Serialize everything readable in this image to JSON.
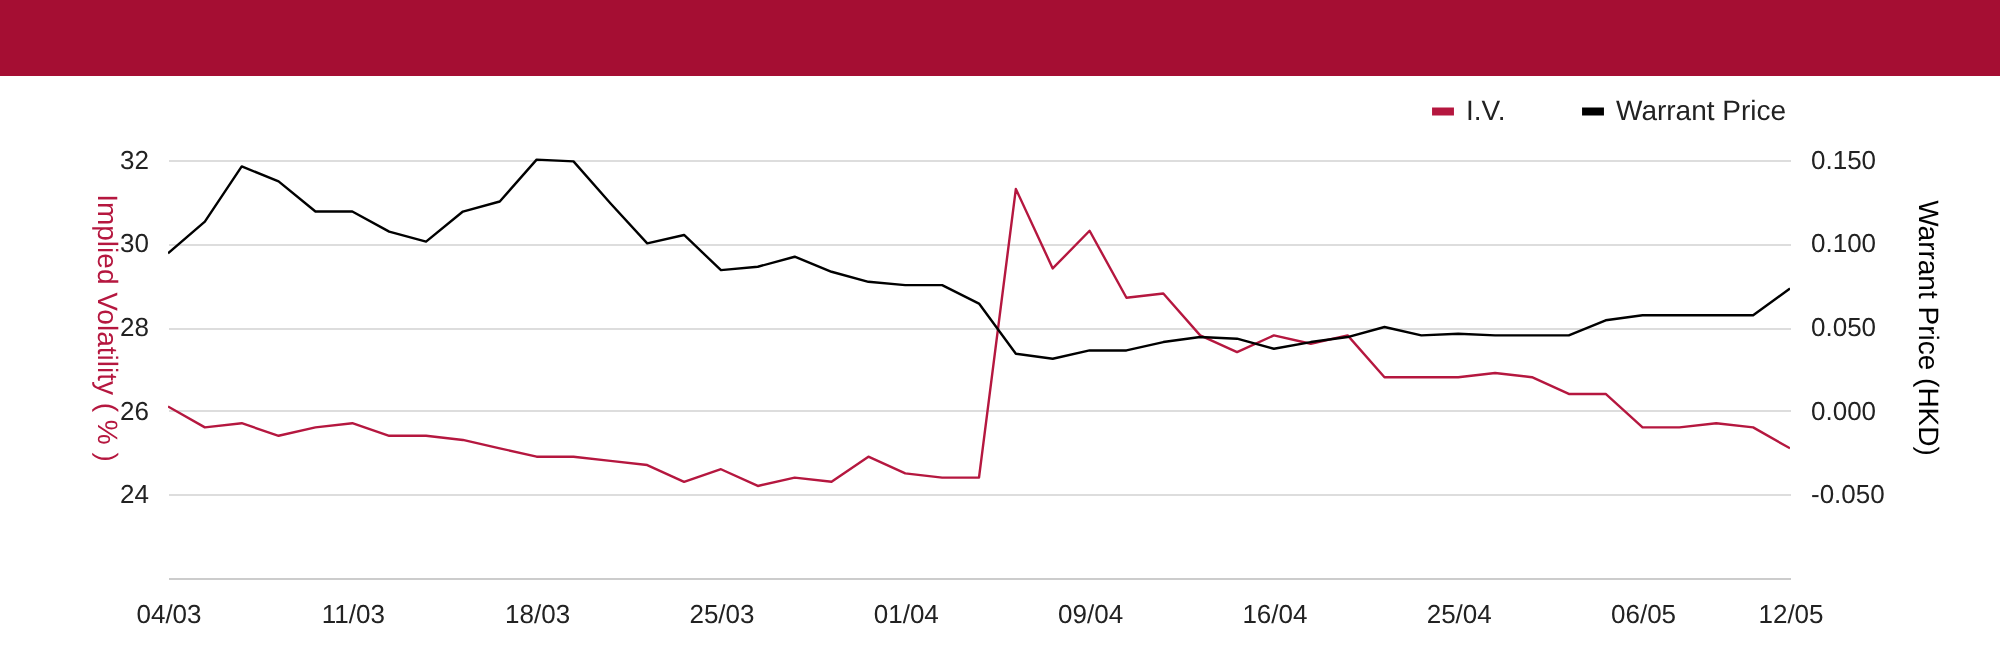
{
  "chart_data": {
    "type": "line",
    "categories": [
      "04/03",
      null,
      null,
      null,
      null,
      "11/03",
      null,
      null,
      null,
      null,
      "18/03",
      null,
      null,
      null,
      null,
      "25/03",
      null,
      null,
      null,
      null,
      "01/04",
      null,
      null,
      null,
      null,
      "09/04",
      null,
      null,
      null,
      null,
      "16/04",
      null,
      null,
      null,
      null,
      "25/04",
      null,
      null,
      null,
      null,
      "06/05",
      null,
      null,
      null,
      "12/05"
    ],
    "series": [
      {
        "name": "I.V.",
        "color": "#b5173f",
        "values": [
          26.1,
          25.6,
          25.7,
          25.4,
          25.6,
          25.7,
          25.4,
          25.4,
          25.3,
          25.1,
          24.9,
          24.9,
          24.8,
          24.7,
          24.3,
          24.6,
          24.2,
          24.4,
          24.3,
          24.9,
          24.5,
          24.4,
          24.4,
          31.3,
          29.4,
          30.3,
          28.7,
          28.8,
          27.8,
          27.4,
          27.8,
          27.6,
          27.8,
          26.8,
          26.8,
          26.8,
          26.9,
          26.8,
          26.4,
          26.4,
          25.6,
          25.6,
          25.7,
          25.6,
          25.1
        ]
      },
      {
        "name": "Warrant Price",
        "color": "#000000",
        "axis": "y2",
        "values": [
          0.094,
          0.113,
          0.146,
          0.137,
          0.119,
          0.119,
          0.107,
          0.101,
          0.119,
          0.125,
          0.15,
          0.149,
          0.124,
          0.1,
          0.105,
          0.084,
          0.086,
          0.092,
          0.083,
          0.077,
          0.075,
          0.075,
          0.064,
          0.034,
          0.031,
          0.036,
          0.036,
          0.041,
          0.044,
          0.043,
          0.037,
          0.041,
          0.044,
          0.05,
          0.045,
          0.046,
          0.045,
          0.045,
          0.045,
          0.054,
          0.057,
          0.057,
          0.057,
          0.057,
          0.073
        ]
      }
    ],
    "ylabel": "Implied Volatility ( % )",
    "y2label": "Warrant Price (HKD)",
    "ylim": [
      22,
      34
    ],
    "yticks": [
      24,
      26,
      28,
      30,
      32
    ],
    "y2lim": [
      -0.1,
      0.2
    ],
    "y2ticks": [
      {
        "value": -0.05,
        "label": "-0.050"
      },
      {
        "value": 0,
        "label": "0.000"
      },
      {
        "value": 0.05,
        "label": "0.050"
      },
      {
        "value": 0.1,
        "label": "0.100"
      },
      {
        "value": 0.15,
        "label": "0.150"
      }
    ],
    "grid": "y",
    "legend": "top right"
  }
}
